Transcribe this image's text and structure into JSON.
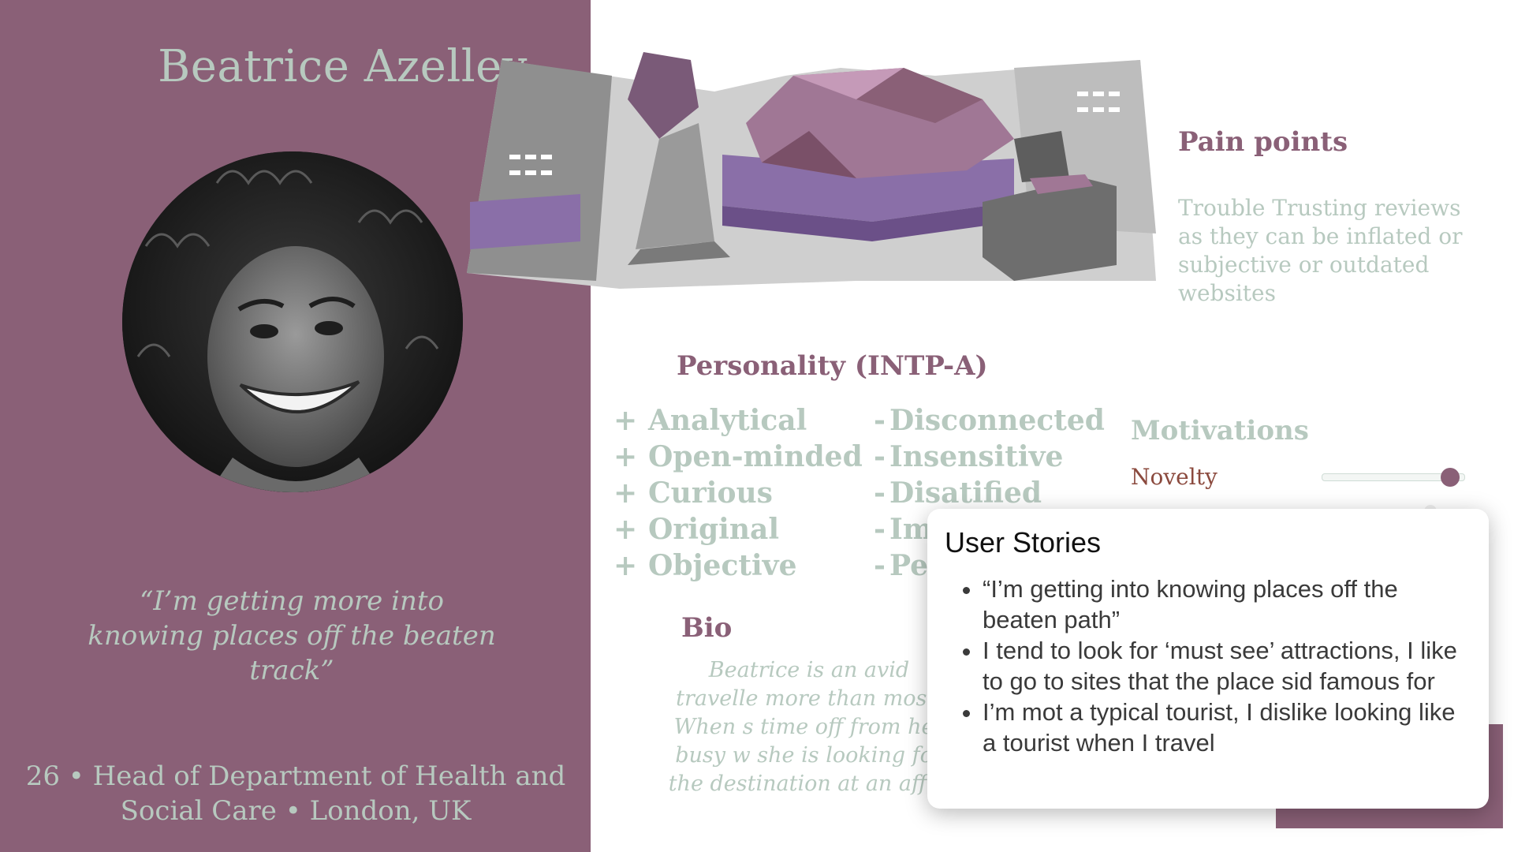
{
  "persona": {
    "name": "Beatrice Azelley",
    "quote": "“I’m getting more into knowing places off the beaten track”",
    "meta": "26 • Head of Department of Health and Social Care • London, UK"
  },
  "pain_points": {
    "title": "Pain points",
    "text": "Trouble Trusting reviews as they can be inflated or subjective or outdated websites"
  },
  "personality": {
    "title": "Personality (INTP-A)",
    "positive_symbol": "+",
    "negative_symbol": "-",
    "positive": [
      "Analytical",
      "Open-minded",
      "Curious",
      "Original",
      "Objective"
    ],
    "negative": [
      "Disconnected",
      "Insensitive",
      "Disatified",
      "Im",
      "Pe"
    ]
  },
  "bio": {
    "title": "Bio",
    "text": "Beatrice is an avid travelle more than most. When s time off from her busy w she is looking for the destination at an affor"
  },
  "motivations": {
    "title": "Motivations",
    "items": [
      {
        "label": "Novelty",
        "level": 0.9
      }
    ]
  },
  "user_stories": {
    "title": "User Stories",
    "items": [
      "“I’m getting into knowing places off the beaten path”",
      "I tend to look for ‘must see’ attractions, I like to go to sites that the place sid famous for",
      "I’m mot a typical tourist, I dislike looking like a tourist when I travel"
    ]
  },
  "colors": {
    "panel": "#8a6077",
    "sage_text": "#b7c9bf",
    "accent_text": "#8a6077",
    "motivation_label": "#8b4a3e",
    "popup_bg": "#ffffff"
  },
  "icons": {
    "avatar": "portrait-photo",
    "illustration": "traveler-city-illustration"
  }
}
